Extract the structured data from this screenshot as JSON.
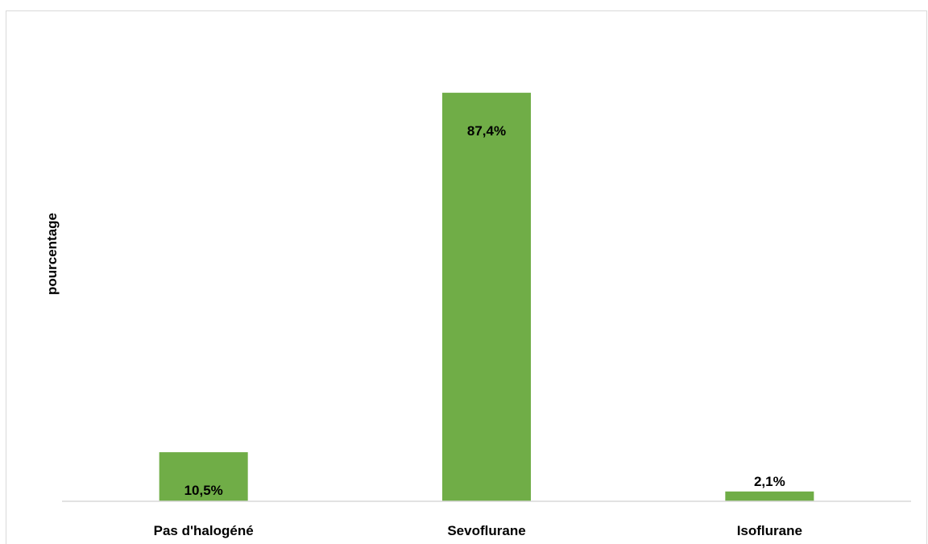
{
  "chart_data": {
    "type": "bar",
    "title": "",
    "xlabel": "",
    "ylabel": "pourcentage",
    "categories": [
      "Pas d'halogéné",
      "Sevoflurane",
      "Isoflurane"
    ],
    "values": [
      10.5,
      87.4,
      2.1
    ],
    "value_labels": [
      "10,5%",
      "87,4%",
      "2,1%"
    ],
    "ylim": [
      0,
      100
    ],
    "grid": false,
    "legend": "none",
    "bar_color": "#70ad47"
  }
}
